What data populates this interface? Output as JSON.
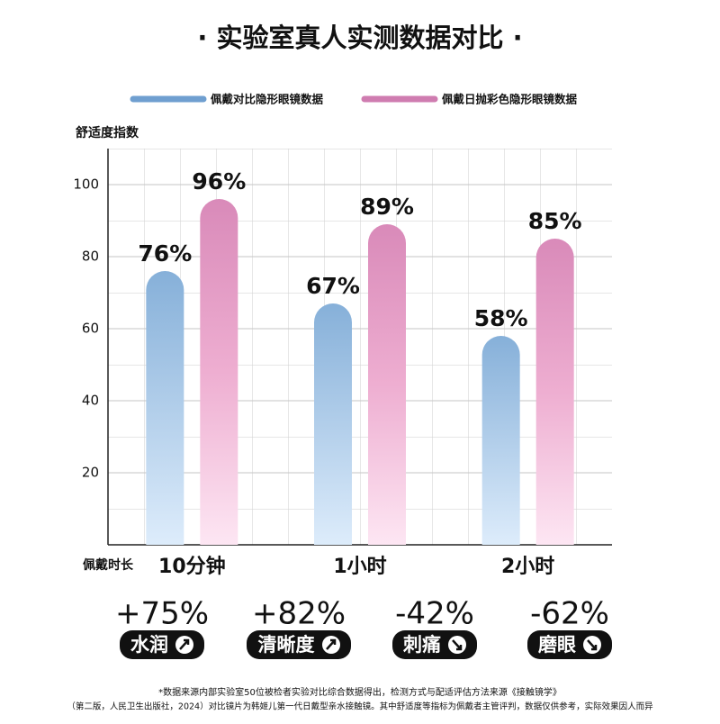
{
  "chart_data": {
    "type": "bar",
    "title": "· 实验室真人实测数据对比 ·",
    "y_label": "舒适度指数",
    "x_label": "佩戴时长",
    "categories": [
      "10分钟",
      "1小时",
      "2小时"
    ],
    "series": [
      {
        "name": "佩戴对比隐形眼镜数据",
        "color": "#6f9fd0",
        "values": [
          76,
          67,
          58
        ],
        "value_labels": [
          "76%",
          "67%",
          "58%"
        ]
      },
      {
        "name": "佩戴日抛彩色隐形眼镜数据",
        "color": "#cf7cb0",
        "values": [
          96,
          89,
          85
        ],
        "value_labels": [
          "96%",
          "89%",
          "85%"
        ]
      }
    ],
    "ylim": [
      0,
      110
    ],
    "yticks": [
      20,
      40,
      60,
      80,
      100
    ],
    "grid": true
  },
  "stats": [
    {
      "value": "+75%",
      "label": "水润"
    },
    {
      "value": "+82%",
      "label": "清晰度"
    },
    {
      "value": "-42%",
      "label": "刺痛"
    },
    {
      "value": "-62%",
      "label": "磨眼"
    }
  ],
  "footnote": [
    "*数据来源内部实验室50位被检者实验对比综合数据得出，检测方式与配适评估方法来源《接触镜学》",
    "（第二版，人民卫生出版社，2024）对比镜片为韩姬儿第一代日戴型亲水接触镜。其中舒适度等指标为佩戴者主管评判，数据仅供参考，实际效果因人而异"
  ]
}
